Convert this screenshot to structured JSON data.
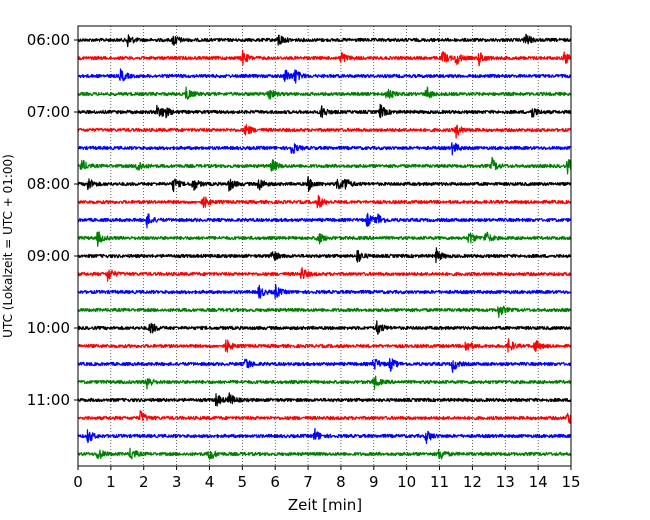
{
  "chart_data": {
    "type": "line",
    "title": "",
    "xlabel": "Zeit  [min]",
    "ylabel": "UTC (Lokalzeit = UTC + 01:00)",
    "xlim": [
      0,
      15
    ],
    "x_ticks": [
      "0",
      "1",
      "2",
      "3",
      "4",
      "5",
      "6",
      "7",
      "8",
      "9",
      "10",
      "11",
      "12",
      "13",
      "14",
      "15"
    ],
    "y_ticks": [
      "06:00",
      "07:00",
      "08:00",
      "09:00",
      "10:00",
      "11:00"
    ],
    "grid": "vertical dotted",
    "trace_interval_min": 15,
    "first_trace": "06:00",
    "trace_count": 24,
    "trace_colors": [
      "#000000",
      "#ff0000",
      "#0000ff",
      "#008000"
    ],
    "series": [
      {
        "start": "06:00",
        "color": "#000000",
        "events": [
          1.5,
          2.9,
          6.1,
          13.6
        ]
      },
      {
        "start": "06:15",
        "color": "#ff0000",
        "events": [
          5.0,
          8.0,
          11.1,
          11.5,
          12.2,
          14.8
        ]
      },
      {
        "start": "06:30",
        "color": "#0000ff",
        "events": [
          1.3,
          6.3,
          6.6
        ]
      },
      {
        "start": "06:45",
        "color": "#008000",
        "events": [
          3.3,
          5.8,
          9.4,
          10.6
        ]
      },
      {
        "start": "07:00",
        "color": "#000000",
        "events": [
          2.4,
          2.6,
          7.4,
          9.2,
          13.8
        ]
      },
      {
        "start": "07:15",
        "color": "#ff0000",
        "events": [
          5.1,
          11.5
        ]
      },
      {
        "start": "07:30",
        "color": "#0000ff",
        "events": [
          6.5,
          11.4
        ]
      },
      {
        "start": "07:45",
        "color": "#008000",
        "events": [
          0.1,
          1.8,
          5.9,
          12.6,
          14.9
        ]
      },
      {
        "start": "08:00",
        "color": "#000000",
        "events": [
          0.3,
          2.9,
          3.5,
          4.6,
          5.5,
          7.0,
          7.9,
          8.1
        ]
      },
      {
        "start": "08:15",
        "color": "#ff0000",
        "events": [
          3.8,
          7.3
        ]
      },
      {
        "start": "08:30",
        "color": "#0000ff",
        "events": [
          2.1,
          8.8,
          9.1
        ]
      },
      {
        "start": "08:45",
        "color": "#008000",
        "events": [
          0.6,
          7.3,
          11.9,
          12.4
        ]
      },
      {
        "start": "09:00",
        "color": "#000000",
        "events": [
          5.9,
          8.5,
          10.9
        ]
      },
      {
        "start": "09:15",
        "color": "#ff0000",
        "events": [
          0.9,
          6.8
        ]
      },
      {
        "start": "09:30",
        "color": "#0000ff",
        "events": [
          5.5,
          6.0
        ]
      },
      {
        "start": "09:45",
        "color": "#008000",
        "events": [
          12.8
        ]
      },
      {
        "start": "10:00",
        "color": "#000000",
        "events": [
          2.2,
          9.1
        ]
      },
      {
        "start": "10:15",
        "color": "#ff0000",
        "events": [
          4.5,
          11.8,
          13.1,
          13.9
        ]
      },
      {
        "start": "10:30",
        "color": "#0000ff",
        "events": [
          5.1,
          9.0,
          9.5,
          11.4
        ]
      },
      {
        "start": "10:45",
        "color": "#008000",
        "events": [
          2.1,
          9.0
        ]
      },
      {
        "start": "11:00",
        "color": "#000000",
        "events": [
          4.2,
          4.6
        ]
      },
      {
        "start": "11:15",
        "color": "#ff0000",
        "events": [
          1.9,
          14.9
        ]
      },
      {
        "start": "11:30",
        "color": "#0000ff",
        "events": [
          0.3,
          7.2,
          10.6
        ]
      },
      {
        "start": "11:45",
        "color": "#008000",
        "events": [
          0.6,
          1.6,
          4.0,
          11.0
        ]
      }
    ]
  }
}
